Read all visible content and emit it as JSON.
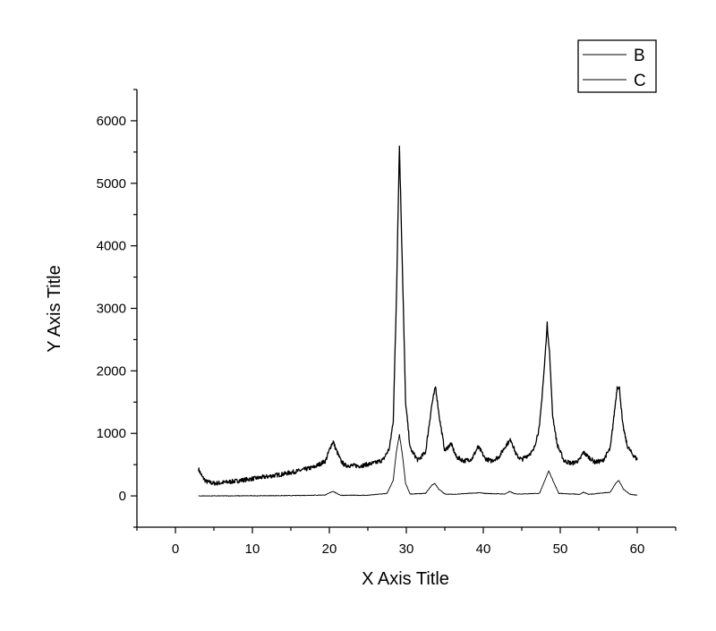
{
  "chart_data": {
    "type": "line",
    "title": "",
    "xlabel": "X Axis Title",
    "ylabel": "Y Axis Title",
    "xlim": [
      -5,
      65
    ],
    "ylim": [
      -500,
      6500
    ],
    "xticks": [
      0,
      10,
      20,
      30,
      40,
      50,
      60
    ],
    "yticks": [
      0,
      1000,
      2000,
      3000,
      4000,
      5000,
      6000
    ],
    "grid": false,
    "legend_position": "top-right",
    "series": [
      {
        "name": "B",
        "color": "#000000",
        "x": [
          3,
          3.5,
          4,
          5,
          6,
          8,
          10,
          12,
          14,
          16,
          18,
          19.5,
          20.2,
          20.5,
          20.8,
          21.5,
          22,
          24,
          26,
          27,
          27.8,
          28.3,
          28.7,
          29.1,
          29.5,
          29.9,
          30.5,
          31.5,
          32.5,
          33.3,
          33.8,
          34.3,
          35,
          35.8,
          36.5,
          37.5,
          38.5,
          39.3,
          39.7,
          40.2,
          41,
          42,
          43,
          43.6,
          44.3,
          45,
          46.5,
          47.3,
          47.9,
          48.3,
          48.6,
          49,
          49.6,
          50.5,
          51.5,
          52.5,
          53,
          53.5,
          54.5,
          55.5,
          56.5,
          57,
          57.4,
          57.7,
          58.1,
          58.7,
          59.3,
          60
        ],
        "y": [
          430,
          300,
          230,
          200,
          210,
          240,
          275,
          310,
          350,
          400,
          460,
          560,
          800,
          870,
          760,
          560,
          490,
          480,
          530,
          580,
          760,
          1200,
          3100,
          5600,
          3600,
          1500,
          760,
          570,
          700,
          1450,
          1750,
          1250,
          720,
          840,
          620,
          560,
          590,
          780,
          720,
          600,
          560,
          620,
          820,
          900,
          650,
          580,
          720,
          1100,
          2000,
          2750,
          2300,
          1300,
          820,
          560,
          520,
          570,
          700,
          640,
          540,
          560,
          760,
          1300,
          1750,
          1720,
          1150,
          800,
          680,
          580
        ]
      },
      {
        "name": "C",
        "color": "#000000",
        "x": [
          3,
          5,
          10,
          15,
          19.5,
          20.2,
          20.5,
          20.8,
          21.5,
          25,
          27.5,
          28.3,
          28.7,
          29.1,
          29.5,
          29.9,
          30.5,
          32.5,
          33.3,
          33.7,
          34.2,
          35,
          36,
          39.5,
          40.2,
          42.8,
          43.4,
          44.2,
          47.3,
          48,
          48.5,
          49,
          49.8,
          52.5,
          53,
          53.7,
          56.5,
          57.2,
          57.6,
          58.2,
          59,
          60
        ],
        "y": [
          0,
          0,
          2,
          5,
          15,
          60,
          75,
          50,
          10,
          10,
          40,
          250,
          700,
          980,
          650,
          200,
          30,
          40,
          170,
          200,
          110,
          30,
          25,
          50,
          40,
          30,
          70,
          30,
          40,
          250,
          400,
          260,
          40,
          25,
          60,
          25,
          60,
          200,
          250,
          110,
          30,
          10
        ]
      }
    ]
  }
}
